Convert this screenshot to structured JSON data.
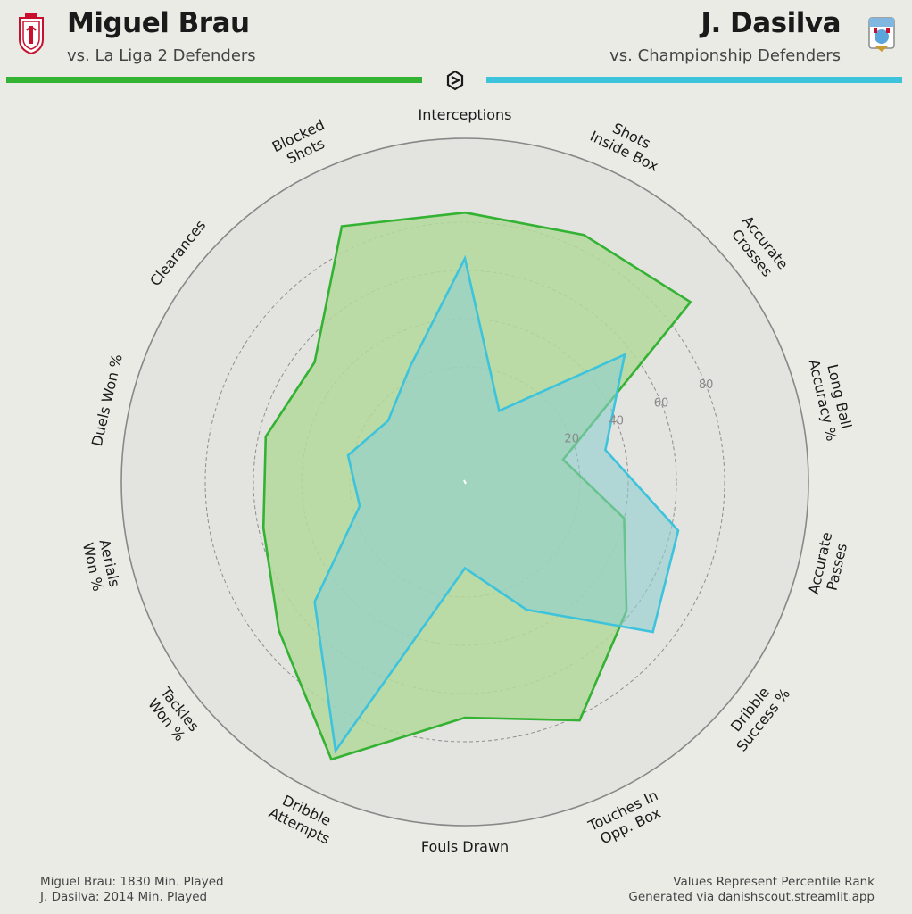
{
  "header": {
    "left": {
      "name": "Miguel Brau",
      "subtitle": "vs. La Liga 2 Defenders",
      "color": "#33b233"
    },
    "right": {
      "name": "J. Dasilva",
      "subtitle": "vs. Championship Defenders",
      "color": "#3ec3dc"
    }
  },
  "footer": {
    "left_line1": "Miguel Brau: 1830 Min. Played",
    "left_line2": "J. Dasilva: 2014 Min. Played",
    "right_line1": "Values Represent Percentile Rank",
    "right_line2": "Generated via danishscout.streamlit.app"
  },
  "chart_data": {
    "type": "radar",
    "categories": [
      [
        "Interceptions"
      ],
      [
        "Shots",
        "Inside Box"
      ],
      [
        "Accurate",
        "Crosses"
      ],
      [
        "Long Ball",
        "Accuracy %"
      ],
      [
        "Accurate",
        "Passes"
      ],
      [
        "Dribble",
        "Success %"
      ],
      [
        "Touches In",
        "Opp. Box"
      ],
      [
        "Fouls Drawn"
      ],
      [
        "Dribble",
        "Attempts"
      ],
      [
        "Tackles",
        "Won %"
      ],
      [
        "Aerials",
        "Won %"
      ],
      [
        "Duels Won %"
      ],
      [
        "Clearances"
      ],
      [
        "Blocked",
        "Shots"
      ]
    ],
    "rlim": [
      0,
      100
    ],
    "ticks": [
      20,
      40,
      60,
      80
    ],
    "grid": true,
    "series": [
      {
        "name": "Miguel Brau",
        "color": "#33b233",
        "fill": "#b4d99c",
        "values": [
          84,
          86,
          92,
          14,
          40,
          58,
          82,
          70,
          100,
          71,
          58,
          57,
          52,
          90
        ]
      },
      {
        "name": "J. Dasilva",
        "color": "#3ec3dc",
        "fill": "#8ecfcf",
        "values": [
          65,
          5,
          57,
          32,
          63,
          72,
          31,
          8,
          96,
          52,
          17,
          22,
          13,
          25
        ]
      }
    ]
  }
}
